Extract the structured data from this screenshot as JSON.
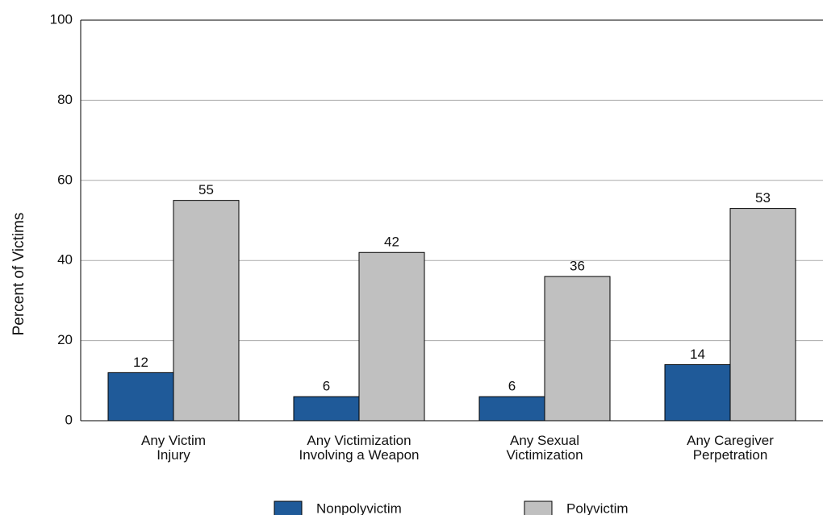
{
  "chart_data": {
    "type": "bar",
    "y_label": "Percent of Victims",
    "categories": [
      "Any Victim\nInjury",
      "Any Victimization\nInvolving a Weapon",
      "Any Sexual\nVictimization",
      "Any Caregiver\nPerpetration"
    ],
    "series": [
      {
        "name": "Nonpolyvictim",
        "color": "#1f5a99",
        "values": [
          12,
          6,
          6,
          14
        ]
      },
      {
        "name": "Polyvictim",
        "color": "#c0c0c0",
        "values": [
          55,
          42,
          36,
          53
        ]
      }
    ],
    "ylim": [
      0,
      100
    ],
    "yticks": [
      0,
      20,
      40,
      60,
      80,
      100
    ],
    "grid": true
  }
}
